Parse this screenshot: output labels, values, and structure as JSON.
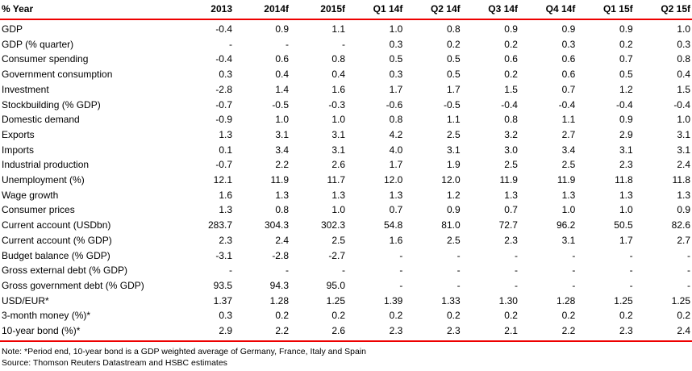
{
  "colors": {
    "rule_red": "#ee0000"
  },
  "table": {
    "header": [
      "% Year",
      "2013",
      "2014f",
      "2015f",
      "Q1 14f",
      "Q2 14f",
      "Q3 14f",
      "Q4 14f",
      "Q1 15f",
      "Q2 15f"
    ],
    "rows": [
      {
        "label": "GDP",
        "values": [
          "-0.4",
          "0.9",
          "1.1",
          "1.0",
          "0.8",
          "0.9",
          "0.9",
          "0.9",
          "1.0"
        ]
      },
      {
        "label": "GDP (% quarter)",
        "values": [
          "-",
          "-",
          "-",
          "0.3",
          "0.2",
          "0.2",
          "0.3",
          "0.2",
          "0.3"
        ]
      },
      {
        "label": "Consumer spending",
        "values": [
          "-0.4",
          "0.6",
          "0.8",
          "0.5",
          "0.5",
          "0.6",
          "0.6",
          "0.7",
          "0.8"
        ]
      },
      {
        "label": "Government consumption",
        "values": [
          "0.3",
          "0.4",
          "0.4",
          "0.3",
          "0.5",
          "0.2",
          "0.6",
          "0.5",
          "0.4"
        ]
      },
      {
        "label": "Investment",
        "values": [
          "-2.8",
          "1.4",
          "1.6",
          "1.7",
          "1.7",
          "1.5",
          "0.7",
          "1.2",
          "1.5"
        ]
      },
      {
        "label": "Stockbuilding (% GDP)",
        "values": [
          "-0.7",
          "-0.5",
          "-0.3",
          "-0.6",
          "-0.5",
          "-0.4",
          "-0.4",
          "-0.4",
          "-0.4"
        ]
      },
      {
        "label": "Domestic demand",
        "values": [
          "-0.9",
          "1.0",
          "1.0",
          "0.8",
          "1.1",
          "0.8",
          "1.1",
          "0.9",
          "1.0"
        ]
      },
      {
        "label": "Exports",
        "values": [
          "1.3",
          "3.1",
          "3.1",
          "4.2",
          "2.5",
          "3.2",
          "2.7",
          "2.9",
          "3.1"
        ]
      },
      {
        "label": "Imports",
        "values": [
          "0.1",
          "3.4",
          "3.1",
          "4.0",
          "3.1",
          "3.0",
          "3.4",
          "3.1",
          "3.1"
        ]
      },
      {
        "label": "Industrial production",
        "values": [
          "-0.7",
          "2.2",
          "2.6",
          "1.7",
          "1.9",
          "2.5",
          "2.5",
          "2.3",
          "2.4"
        ]
      },
      {
        "label": "Unemployment (%)",
        "values": [
          "12.1",
          "11.9",
          "11.7",
          "12.0",
          "12.0",
          "11.9",
          "11.9",
          "11.8",
          "11.8"
        ]
      },
      {
        "label": "Wage growth",
        "values": [
          "1.6",
          "1.3",
          "1.3",
          "1.3",
          "1.2",
          "1.3",
          "1.3",
          "1.3",
          "1.3"
        ]
      },
      {
        "label": "Consumer prices",
        "values": [
          "1.3",
          "0.8",
          "1.0",
          "0.7",
          "0.9",
          "0.7",
          "1.0",
          "1.0",
          "0.9"
        ]
      },
      {
        "label": "Current account (USDbn)",
        "values": [
          "283.7",
          "304.3",
          "302.3",
          "54.8",
          "81.0",
          "72.7",
          "96.2",
          "50.5",
          "82.6"
        ]
      },
      {
        "label": "Current account (% GDP)",
        "values": [
          "2.3",
          "2.4",
          "2.5",
          "1.6",
          "2.5",
          "2.3",
          "3.1",
          "1.7",
          "2.7"
        ]
      },
      {
        "label": "Budget balance (% GDP)",
        "values": [
          "-3.1",
          "-2.8",
          "-2.7",
          "-",
          "-",
          "-",
          "-",
          "-",
          "-"
        ]
      },
      {
        "label": "Gross external debt (% GDP)",
        "values": [
          "-",
          "-",
          "-",
          "-",
          "-",
          "-",
          "-",
          "-",
          "-"
        ]
      },
      {
        "label": "Gross government debt (% GDP)",
        "values": [
          "93.5",
          "94.3",
          "95.0",
          "-",
          "-",
          "-",
          "-",
          "-",
          "-"
        ]
      },
      {
        "label": "USD/EUR*",
        "values": [
          "1.37",
          "1.28",
          "1.25",
          "1.39",
          "1.33",
          "1.30",
          "1.28",
          "1.25",
          "1.25"
        ]
      },
      {
        "label": "3-month money (%)*",
        "values": [
          "0.3",
          "0.2",
          "0.2",
          "0.2",
          "0.2",
          "0.2",
          "0.2",
          "0.2",
          "0.2"
        ]
      },
      {
        "label": "10-year bond (%)*",
        "values": [
          "2.9",
          "2.2",
          "2.6",
          "2.3",
          "2.3",
          "2.1",
          "2.2",
          "2.3",
          "2.4"
        ]
      }
    ]
  },
  "notes": {
    "note": "Note: *Period end, 10-year bond is a GDP weighted average of Germany, France, Italy and Spain",
    "source": "Source: Thomson Reuters Datastream and HSBC estimates"
  }
}
